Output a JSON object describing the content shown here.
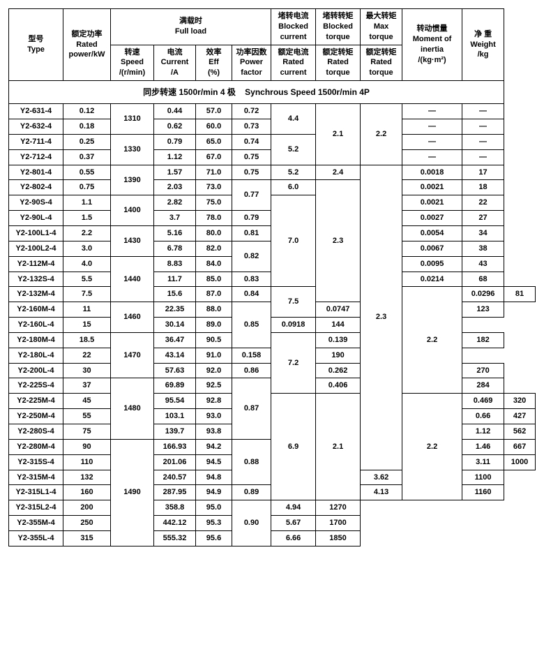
{
  "headers": {
    "type": "型号<br>Type",
    "power": "额定功率<br>Rated<br>power/kW",
    "fullload": "满载时<br>Full load",
    "speed": "转速<br>Speed<br>/(r/min)",
    "current": "电流<br>Current<br>/A",
    "eff": "效率<br>Eff<br>(%)",
    "pf": "功率因数<br>Power<br>factor",
    "blocked_current": "堵转电流<br>Blocked<br>current",
    "rated_current": "额定电流<br>Rated<br>current",
    "blocked_torque": "堵转转矩<br>Blocked<br>torque",
    "rated_torque_b": "额定转矩<br>Rated<br>torque",
    "max_torque": "最大转矩<br>Max<br>torque",
    "rated_torque_m": "额定转矩<br>Rated<br>torque",
    "inertia": "转动惯量<br>Moment of<br>inertia<br>/(kg·m²)",
    "weight": "净 重<br>Weight<br>/kg"
  },
  "section_title": "同步转速 1500r/min 4 极    Synchrous Speed 1500r/min 4P",
  "rows": [
    {
      "type": "Y2-631-4",
      "power": "0.12",
      "speed": "1310",
      "speed_rs": 2,
      "current": "0.44",
      "eff": "57.0",
      "pf": "0.72",
      "bc": "4.4",
      "bc_rs": 2,
      "bt": "2.1",
      "bt_rs": 4,
      "mt": "2.2",
      "mt_rs": 4,
      "inertia": "—",
      "weight": "—"
    },
    {
      "type": "Y2-632-4",
      "power": "0.18",
      "current": "0.62",
      "eff": "60.0",
      "pf": "0.73",
      "inertia": "—",
      "weight": "—"
    },
    {
      "type": "Y2-711-4",
      "power": "0.25",
      "speed": "1330",
      "speed_rs": 2,
      "current": "0.79",
      "eff": "65.0",
      "pf": "0.74",
      "bc": "5.2",
      "bc_rs": 2,
      "inertia": "—",
      "weight": "—"
    },
    {
      "type": "Y2-712-4",
      "power": "0.37",
      "current": "1.12",
      "eff": "67.0",
      "pf": "0.75",
      "inertia": "—",
      "weight": "—"
    },
    {
      "type": "Y2-801-4",
      "power": "0.55",
      "speed": "1390",
      "speed_rs": 2,
      "current": "1.57",
      "eff": "71.0",
      "pf": "0.75",
      "bc": "5.2",
      "bt": "2.4",
      "mt": "2.3",
      "mt_rs": 20,
      "inertia": "0.0018",
      "weight": "17"
    },
    {
      "type": "Y2-802-4",
      "power": "0.75",
      "current": "2.03",
      "eff": "73.0",
      "pf": "0.77",
      "pf_rs": 2,
      "bc": "6.0",
      "bt": "2.3",
      "bt_rs": 8,
      "inertia": "0.0021",
      "weight": "18"
    },
    {
      "type": "Y2-90S-4",
      "power": "1.1",
      "speed": "1400",
      "speed_rs": 2,
      "current": "2.82",
      "eff": "75.0",
      "bc": "7.0",
      "bc_rs": 6,
      "inertia": "0.0021",
      "weight": "22"
    },
    {
      "type": "Y2-90L-4",
      "power": "1.5",
      "current": "3.7",
      "eff": "78.0",
      "pf": "0.79",
      "inertia": "0.0027",
      "weight": "27"
    },
    {
      "type": "Y2-100L1-4",
      "power": "2.2",
      "speed": "1430",
      "speed_rs": 2,
      "current": "5.16",
      "eff": "80.0",
      "pf": "0.81",
      "inertia": "0.0054",
      "weight": "34"
    },
    {
      "type": "Y2-100L2-4",
      "power": "3.0",
      "current": "6.78",
      "eff": "82.0",
      "pf": "0.82",
      "pf_rs": 2,
      "inertia": "0.0067",
      "weight": "38"
    },
    {
      "type": "Y2-112M-4",
      "power": "4.0",
      "speed": "1440",
      "speed_rs": 3,
      "current": "8.83",
      "eff": "84.0",
      "inertia": "0.0095",
      "weight": "43"
    },
    {
      "type": "Y2-132S-4",
      "power": "5.5",
      "current": "11.7",
      "eff": "85.0",
      "pf": "0.83",
      "inertia": "0.0214",
      "weight": "68"
    },
    {
      "type": "Y2-132M-4",
      "power": "7.5",
      "current": "15.6",
      "eff": "87.0",
      "pf": "0.84",
      "bc": "7.5",
      "bc_rs": 2,
      "bt": "2.2",
      "bt_rs": 7,
      "inertia": "0.0296",
      "weight": "81"
    },
    {
      "type": "Y2-160M-4",
      "power": "11",
      "speed": "1460",
      "speed_rs": 2,
      "current": "22.35",
      "eff": "88.0",
      "pf": "0.85",
      "pf_rs": 3,
      "inertia": "0.0747",
      "weight": "123"
    },
    {
      "type": "Y2-160L-4",
      "power": "15",
      "current": "30.14",
      "eff": "89.0",
      "inertia": "0.0918",
      "weight": "144"
    },
    {
      "type": "Y2-180M-4",
      "power": "18.5",
      "speed": "1470",
      "speed_rs": 3,
      "current": "36.47",
      "eff": "90.5",
      "bc": "7.2",
      "bc_rs": 4,
      "inertia": "0.139",
      "weight": "182"
    },
    {
      "type": "Y2-180L-4",
      "power": "22",
      "current": "43.14",
      "eff": "91.0",
      "inertia": "0.158",
      "weight": "190"
    },
    {
      "type": "Y2-200L-4",
      "power": "30",
      "current": "57.63",
      "eff": "92.0",
      "pf": "0.86",
      "inertia": "0.262",
      "weight": "270"
    },
    {
      "type": "Y2-225S-4",
      "power": "37",
      "speed": "1480",
      "speed_rs": 4,
      "current": "69.89",
      "eff": "92.5",
      "pf": "0.87",
      "pf_rs": 4,
      "inertia": "0.406",
      "weight": "284"
    },
    {
      "type": "Y2-225M-4",
      "power": "45",
      "current": "95.54",
      "eff": "92.8",
      "bc": "6.9",
      "bc_rs": 7,
      "bt": "2.1",
      "bt_rs": 7,
      "mt": "2.2",
      "mt_rs": 7,
      "inertia": "0.469",
      "weight": "320"
    },
    {
      "type": "Y2-250M-4",
      "power": "55",
      "current": "103.1",
      "eff": "93.0",
      "inertia": "0.66",
      "weight": "427"
    },
    {
      "type": "Y2-280S-4",
      "power": "75",
      "current": "139.7",
      "eff": "93.8",
      "inertia": "1.12",
      "weight": "562"
    },
    {
      "type": "Y2-280M-4",
      "power": "90",
      "speed": "1490",
      "speed_rs": 7,
      "current": "166.93",
      "eff": "94.2",
      "pf": "0.88",
      "pf_rs": 3,
      "inertia": "1.46",
      "weight": "667"
    },
    {
      "type": "Y2-315S-4",
      "power": "110",
      "current": "201.06",
      "eff": "94.5",
      "inertia": "3.11",
      "weight": "1000"
    },
    {
      "type": "Y2-315M-4",
      "power": "132",
      "current": "240.57",
      "eff": "94.8",
      "inertia": "3.62",
      "weight": "1100"
    },
    {
      "type": "Y2-315L1-4",
      "power": "160",
      "current": "287.95",
      "eff": "94.9",
      "pf": "0.89",
      "inertia": "4.13",
      "weight": "1160"
    },
    {
      "type": "Y2-315L2-4",
      "power": "200",
      "current": "358.8",
      "eff": "95.0",
      "pf": "0.90",
      "pf_rs": 3,
      "inertia": "4.94",
      "weight": "1270"
    },
    {
      "type": "Y2-355M-4",
      "power": "250",
      "current": "442.12",
      "eff": "95.3",
      "inertia": "5.67",
      "weight": "1700"
    },
    {
      "type": "Y2-355L-4",
      "power": "315",
      "current": "555.32",
      "eff": "95.6",
      "inertia": "6.66",
      "weight": "1850"
    }
  ]
}
